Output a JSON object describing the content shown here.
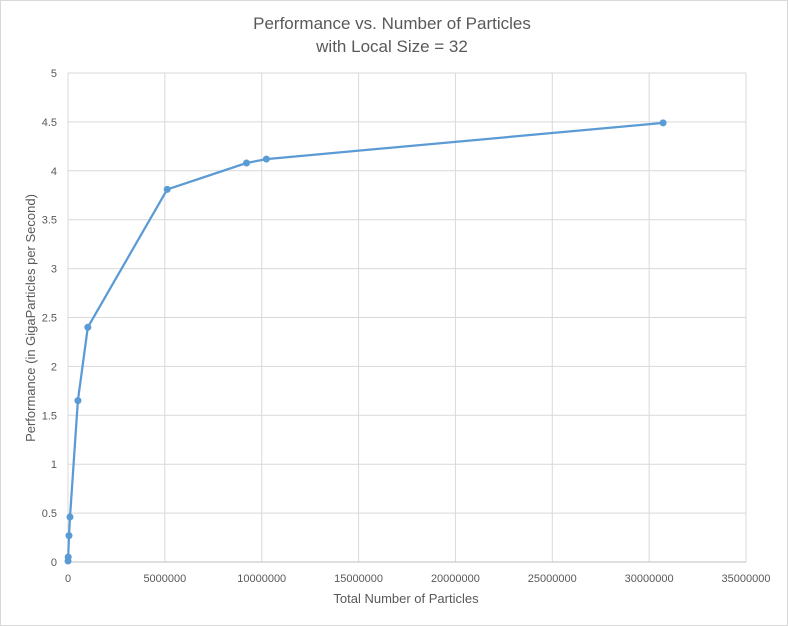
{
  "chart_data": {
    "type": "line",
    "title": "Performance vs. Number of Particles",
    "subtitle": "with Local Size = 32",
    "xlabel": "Total Number of Particles",
    "ylabel": "Performance (in GigaParticles per Second)",
    "xlim": [
      0,
      35000000
    ],
    "ylim": [
      0,
      5
    ],
    "xticks": [
      0,
      5000000,
      10000000,
      15000000,
      20000000,
      25000000,
      30000000,
      35000000
    ],
    "xtick_labels": [
      "0",
      "5000000",
      "10000000",
      "15000000",
      "20000000",
      "25000000",
      "30000000",
      "35000000"
    ],
    "yticks": [
      0,
      0.5,
      1,
      1.5,
      2,
      2.5,
      3,
      3.5,
      4,
      4.5,
      5
    ],
    "ytick_labels": [
      "0",
      "0.5",
      "1",
      "1.5",
      "2",
      "2.5",
      "3",
      "3.5",
      "4",
      "4.5",
      "5"
    ],
    "grid": true,
    "color": "#5b9bd5",
    "series": [
      {
        "x": [
          1024,
          10240,
          51200,
          102400,
          512000,
          1024000,
          5120000,
          9216000,
          10240000,
          30720000
        ],
        "y": [
          0.01,
          0.05,
          0.27,
          0.46,
          1.65,
          2.4,
          3.81,
          4.08,
          4.12,
          4.49
        ]
      }
    ]
  }
}
